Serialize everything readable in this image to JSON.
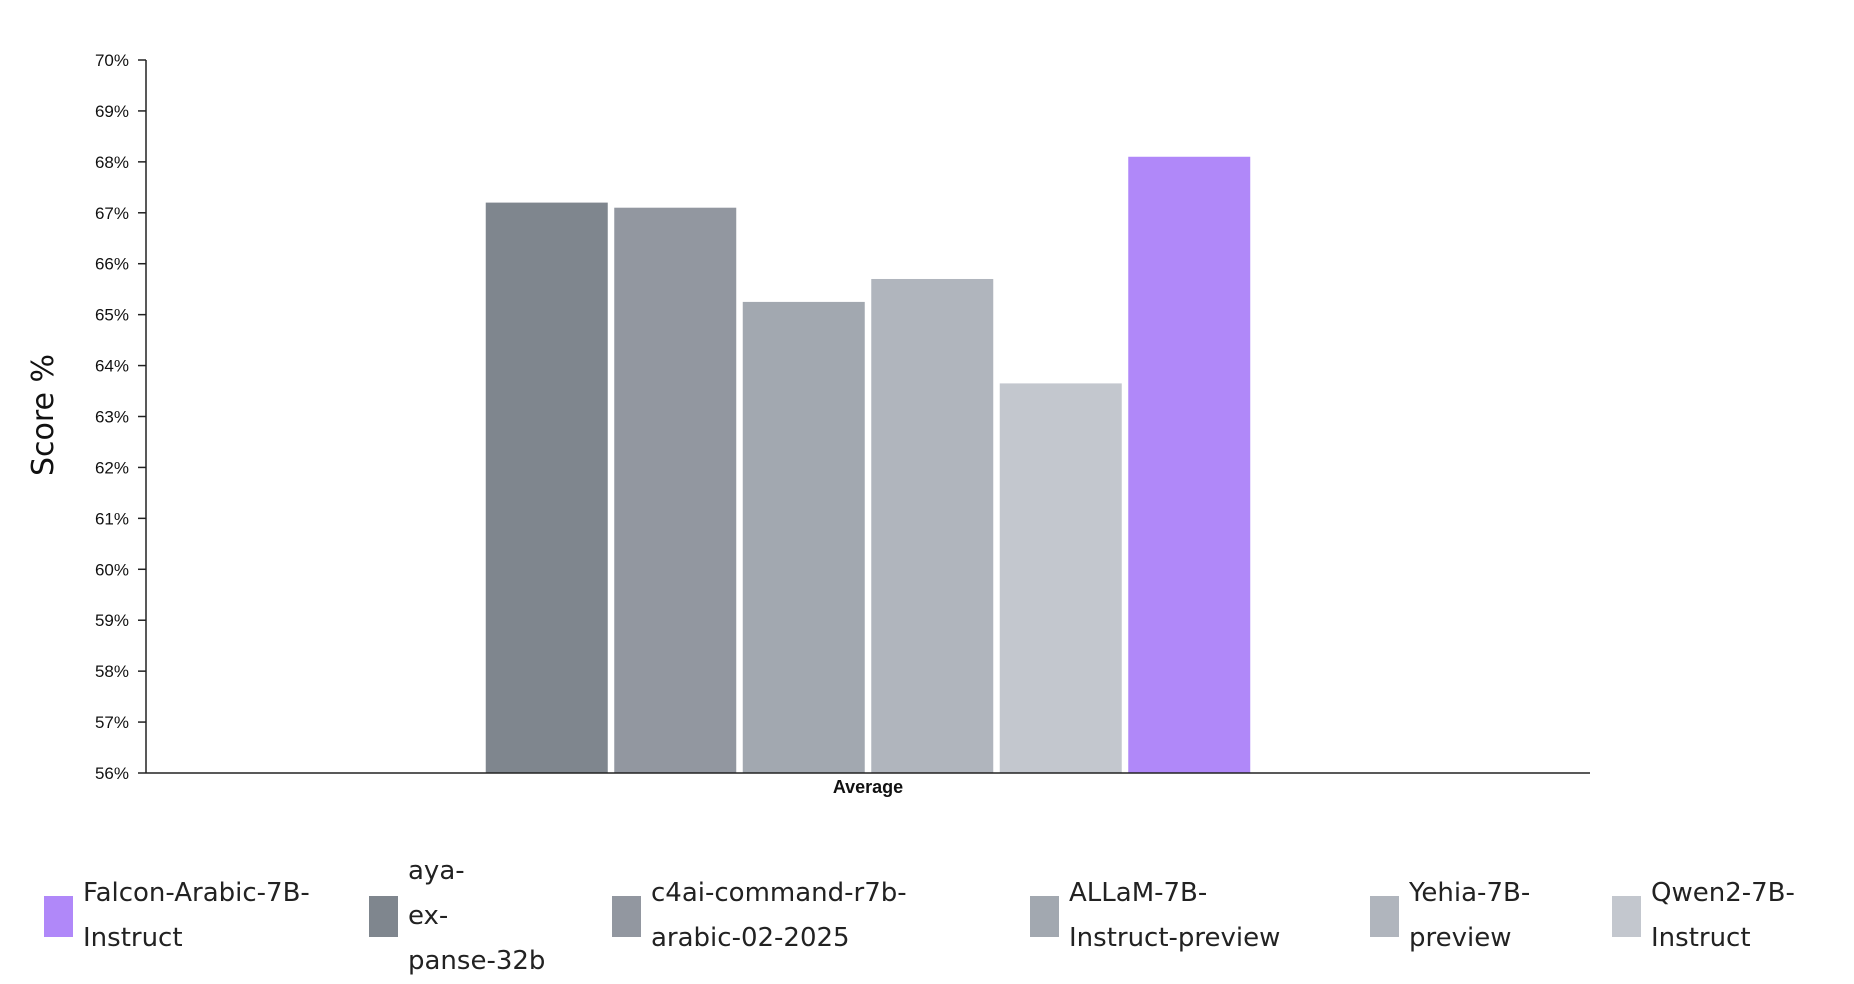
{
  "chart_data": {
    "type": "bar",
    "title": "",
    "xlabel": "",
    "ylabel": "Score %",
    "ylim": [
      56,
      70
    ],
    "yticks": [
      "70%",
      "69%",
      "68%",
      "67%",
      "66%",
      "65%",
      "64%",
      "63%",
      "62%",
      "61%",
      "60%",
      "59%",
      "58%",
      "57%",
      "56%"
    ],
    "categories": [
      "Average"
    ],
    "series": [
      {
        "name": "aya-expanse-32b",
        "values": [
          67.2
        ],
        "color": "#7f868e"
      },
      {
        "name": "c4ai-command-r7b-arabic-02-2025",
        "values": [
          67.1
        ],
        "color": "#9297a0"
      },
      {
        "name": "ALLaM-7B-Instruct-preview",
        "values": [
          65.25
        ],
        "color": "#a2a8b0"
      },
      {
        "name": "Yehia-7B-preview",
        "values": [
          65.7
        ],
        "color": "#b0b5bd"
      },
      {
        "name": "Qwen2-7B-Instruct",
        "values": [
          63.65
        ],
        "color": "#c3c7ce"
      },
      {
        "name": "Falcon-Arabic-7B-Instruct",
        "values": [
          68.1
        ],
        "color": "#b088f9"
      }
    ],
    "legend": {
      "placement": "bottom",
      "items": [
        {
          "lines": [
            "Falcon-Arabic-7B-",
            "Instruct"
          ],
          "color": "#b088f9"
        },
        {
          "lines": [
            "aya-",
            "ex-",
            "panse-32b"
          ],
          "color": "#7f868e"
        },
        {
          "lines": [
            "c4ai-command-r7b-",
            "arabic-02-2025"
          ],
          "color": "#9297a0"
        },
        {
          "lines": [
            "ALLaM-7B-",
            "Instruct-preview"
          ],
          "color": "#a2a8b0"
        },
        {
          "lines": [
            "Yehia-7B-",
            "preview"
          ],
          "color": "#b0b5bd"
        },
        {
          "lines": [
            "Qwen2-7B-",
            "Instruct"
          ],
          "color": "#c3c7ce"
        }
      ]
    }
  }
}
